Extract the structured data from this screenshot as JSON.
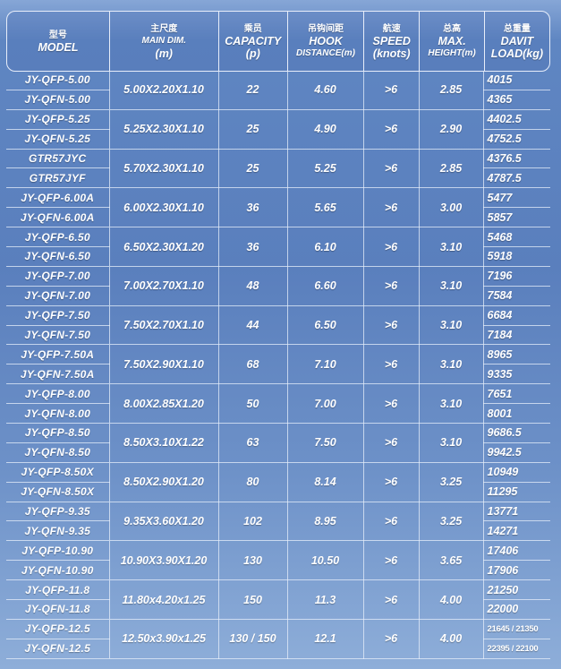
{
  "header": [
    {
      "cn": "型号",
      "en": [
        "MODEL"
      ]
    },
    {
      "cn": "主尺度",
      "en": [
        "MAIN DIM.",
        "(m)"
      ]
    },
    {
      "cn": "乘员",
      "en": [
        "CAPACITY",
        "(p)"
      ]
    },
    {
      "cn": "吊钩间距",
      "en": [
        "HOOK",
        "DISTANCE(m)"
      ]
    },
    {
      "cn": "航速",
      "en": [
        "SPEED",
        "(knots)"
      ]
    },
    {
      "cn": "总高",
      "en": [
        "MAX.",
        "HEIGHT(m)"
      ]
    },
    {
      "cn": "总重量",
      "en": [
        "DAVIT",
        "LOAD(kg)"
      ]
    }
  ],
  "rows": [
    {
      "models": [
        "JY-QFP-5.00",
        "JY-QFN-5.00"
      ],
      "dim": "5.00X2.20X1.10",
      "capacity": "22",
      "hook": "4.60",
      "speed": ">6",
      "height": "2.85",
      "loads": [
        "4015",
        "4365"
      ]
    },
    {
      "models": [
        "JY-QFP-5.25",
        "JY-QFN-5.25"
      ],
      "dim": "5.25X2.30X1.10",
      "capacity": "25",
      "hook": "4.90",
      "speed": ">6",
      "height": "2.90",
      "loads": [
        "4402.5",
        "4752.5"
      ]
    },
    {
      "models": [
        "GTR57JYC",
        "GTR57JYF"
      ],
      "dim": "5.70X2.30X1.10",
      "capacity": "25",
      "hook": "5.25",
      "speed": ">6",
      "height": "2.85",
      "loads": [
        "4376.5",
        "4787.5"
      ]
    },
    {
      "models": [
        "JY-QFP-6.00A",
        "JY-QFN-6.00A"
      ],
      "dim": "6.00X2.30X1.10",
      "capacity": "36",
      "hook": "5.65",
      "speed": ">6",
      "height": "3.00",
      "loads": [
        "5477",
        "5857"
      ]
    },
    {
      "models": [
        "JY-QFP-6.50",
        "JY-QFN-6.50"
      ],
      "dim": "6.50X2.30X1.20",
      "capacity": "36",
      "hook": "6.10",
      "speed": ">6",
      "height": "3.10",
      "loads": [
        "5468",
        "5918"
      ]
    },
    {
      "models": [
        "JY-QFP-7.00",
        "JY-QFN-7.00"
      ],
      "dim": "7.00X2.70X1.10",
      "capacity": "48",
      "hook": "6.60",
      "speed": ">6",
      "height": "3.10",
      "loads": [
        "7196",
        "7584"
      ]
    },
    {
      "models": [
        "JY-QFP-7.50",
        "JY-QFN-7.50"
      ],
      "dim": "7.50X2.70X1.10",
      "capacity": "44",
      "hook": "6.50",
      "speed": ">6",
      "height": "3.10",
      "loads": [
        "6684",
        "7184"
      ]
    },
    {
      "models": [
        "JY-QFP-7.50A",
        "JY-QFN-7.50A"
      ],
      "dim": "7.50X2.90X1.10",
      "capacity": "68",
      "hook": "7.10",
      "speed": ">6",
      "height": "3.10",
      "loads": [
        "8965",
        "9335"
      ]
    },
    {
      "models": [
        "JY-QFP-8.00",
        "JY-QFN-8.00"
      ],
      "dim": "8.00X2.85X1.20",
      "capacity": "50",
      "hook": "7.00",
      "speed": ">6",
      "height": "3.10",
      "loads": [
        "7651",
        "8001"
      ]
    },
    {
      "models": [
        "JY-QFP-8.50",
        "JY-QFN-8.50"
      ],
      "dim": "8.50X3.10X1.22",
      "capacity": "63",
      "hook": "7.50",
      "speed": ">6",
      "height": "3.10",
      "loads": [
        "9686.5",
        "9942.5"
      ]
    },
    {
      "models": [
        "JY-QFP-8.50X",
        "JY-QFN-8.50X"
      ],
      "dim": "8.50X2.90X1.20",
      "capacity": "80",
      "hook": "8.14",
      "speed": ">6",
      "height": "3.25",
      "loads": [
        "10949",
        "11295"
      ]
    },
    {
      "models": [
        "JY-QFP-9.35",
        "JY-QFN-9.35"
      ],
      "dim": "9.35X3.60X1.20",
      "capacity": "102",
      "hook": "8.95",
      "speed": ">6",
      "height": "3.25",
      "loads": [
        "13771",
        "14271"
      ]
    },
    {
      "models": [
        "JY-QFP-10.90",
        "JY-QFN-10.90"
      ],
      "dim": "10.90X3.90X1.20",
      "capacity": "130",
      "hook": "10.50",
      "speed": ">6",
      "height": "3.65",
      "loads": [
        "17406",
        "17906"
      ]
    },
    {
      "models": [
        "JY-QFP-11.8",
        "JY-QFN-11.8"
      ],
      "dim": "11.80x4.20x1.25",
      "capacity": "150",
      "hook": "11.3",
      "speed": ">6",
      "height": "4.00",
      "loads": [
        "21250",
        "22000"
      ]
    },
    {
      "models": [
        "JY-QFP-12.5",
        "JY-QFN-12.5"
      ],
      "dim": "12.50x3.90x1.25",
      "capacity": "130 / 150",
      "hook": "12.1",
      "speed": ">6",
      "height": "4.00",
      "loads": [
        "21645 / 21350",
        "22395 / 22100"
      ]
    }
  ]
}
